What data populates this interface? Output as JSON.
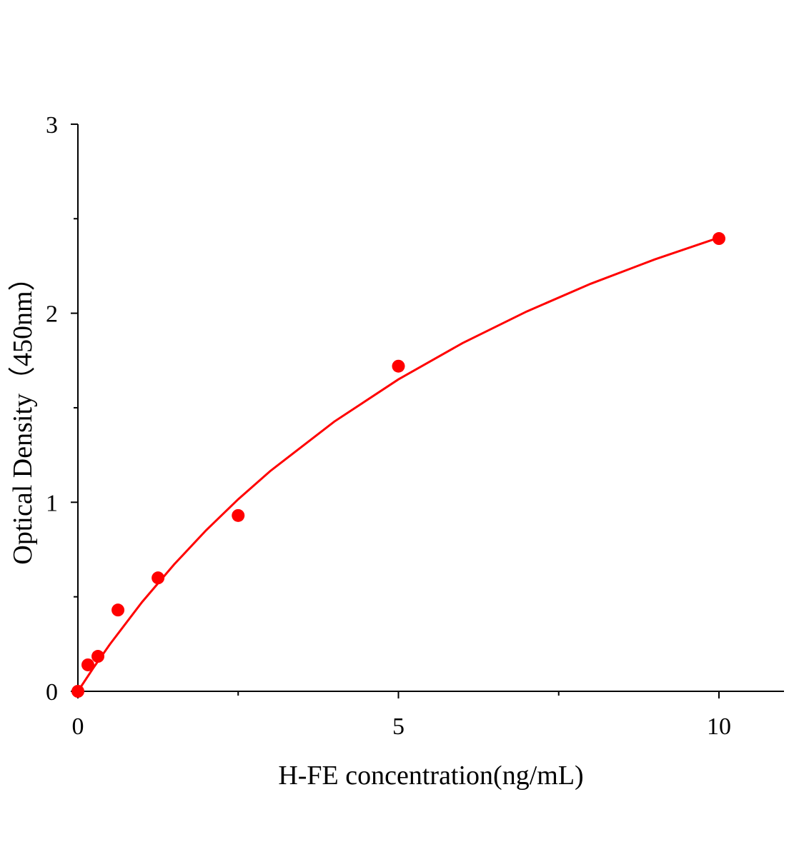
{
  "chart_data": {
    "type": "scatter",
    "title": "",
    "xlabel": "H-FE concentration(ng/mL)",
    "ylabel": "Optical Density（450nm）",
    "xlim": [
      0,
      11
    ],
    "ylim": [
      0,
      3
    ],
    "x_ticks": [
      0,
      5,
      10
    ],
    "x_tick_labels": [
      "0",
      "5",
      "10"
    ],
    "x_minor_ticks": [
      2.5,
      7.5
    ],
    "y_ticks": [
      0,
      1,
      2,
      3
    ],
    "y_tick_labels": [
      "0",
      "1",
      "2",
      "3"
    ],
    "y_minor_ticks": [
      0.5,
      1.5,
      2.5
    ],
    "grid": false,
    "color": "#ff0000",
    "series": [
      {
        "type": "scatter",
        "x": [
          0,
          0.156,
          0.3125,
          0.625,
          1.25,
          2.5,
          5,
          10
        ],
        "y": [
          0,
          0.14,
          0.185,
          0.43,
          0.6,
          0.93,
          1.72,
          2.395
        ]
      },
      {
        "type": "line",
        "x": [
          0,
          0.25,
          0.5,
          1,
          1.5,
          2,
          2.5,
          3,
          4,
          5,
          6,
          7,
          8,
          9,
          10
        ],
        "y": [
          0,
          0.128,
          0.249,
          0.472,
          0.671,
          0.852,
          1.016,
          1.165,
          1.427,
          1.65,
          1.842,
          2.009,
          2.156,
          2.285,
          2.4
        ]
      }
    ]
  }
}
